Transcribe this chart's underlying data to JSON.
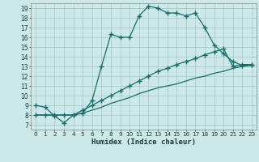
{
  "title": "",
  "xlabel": "Humidex (Indice chaleur)",
  "ylabel": "",
  "bg_color": "#cce8e8",
  "grid_color": "#aacccc",
  "line_color": "#1a6b6b",
  "xlim": [
    -0.5,
    23.5
  ],
  "ylim": [
    6.5,
    19.5
  ],
  "xticks": [
    0,
    1,
    2,
    3,
    4,
    5,
    6,
    7,
    8,
    9,
    10,
    11,
    12,
    13,
    14,
    15,
    16,
    17,
    18,
    19,
    20,
    21,
    22,
    23
  ],
  "yticks": [
    7,
    8,
    9,
    10,
    11,
    12,
    13,
    14,
    15,
    16,
    17,
    18,
    19
  ],
  "line1": [
    9.0,
    8.8,
    7.9,
    7.2,
    8.0,
    8.2,
    9.5,
    13.0,
    16.3,
    16.0,
    16.0,
    18.2,
    19.2,
    19.0,
    18.5,
    18.5,
    18.2,
    18.5,
    17.0,
    15.2,
    14.3,
    13.5,
    13.1,
    13.2
  ],
  "line2": [
    8.0,
    8.0,
    8.0,
    8.0,
    8.0,
    8.5,
    9.0,
    9.5,
    10.0,
    10.5,
    11.0,
    11.5,
    12.0,
    12.5,
    12.8,
    13.2,
    13.5,
    13.8,
    14.2,
    14.5,
    14.8,
    13.0,
    13.2,
    13.2
  ],
  "line3": [
    8.0,
    8.0,
    8.0,
    8.0,
    8.0,
    8.2,
    8.5,
    8.8,
    9.2,
    9.5,
    9.8,
    10.2,
    10.5,
    10.8,
    11.0,
    11.2,
    11.5,
    11.8,
    12.0,
    12.3,
    12.5,
    12.8,
    13.0,
    13.1
  ]
}
